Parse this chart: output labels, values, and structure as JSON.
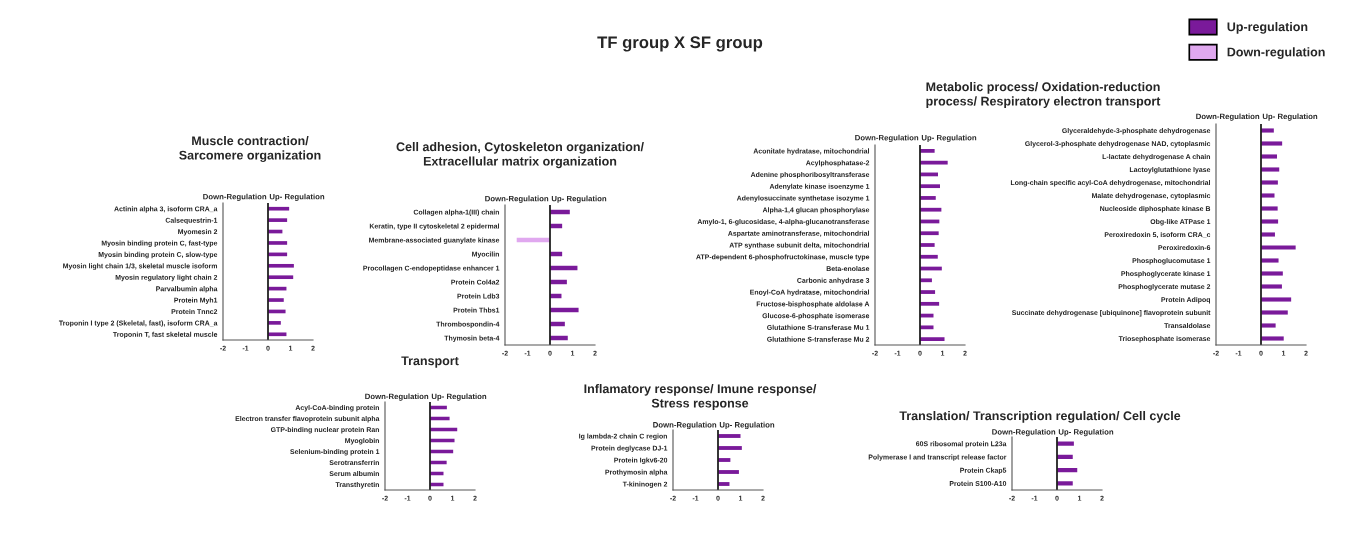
{
  "chart_data": [
    {
      "type": "other",
      "title": "TF group X SF group"
    },
    {
      "type": "bar",
      "orientation": "horizontal",
      "title": "Muscle contraction/\nSarcomere organization",
      "categories": [
        "Actinin alpha 3, isoform CRA_a",
        "Calsequestrin-1",
        "Myomesin 2",
        "Myosin binding protein C, fast-type",
        "Myosin binding protein C, slow-type",
        "Myosin light chain 1/3, skeletal muscle isoform",
        "Myosin regulatory light chain 2",
        "Parvalbumin alpha",
        "Protein Myh1",
        "Protein Tnnc2",
        "Troponin I type 2 (Skeletal, fast), isoform CRA_a",
        "Troponin T, fast skeletal muscle"
      ],
      "series": [
        {
          "color": "#7a1a9a",
          "values": [
            0.94,
            0.85,
            0.64,
            0.85,
            0.85,
            1.15,
            1.12,
            0.82,
            0.7,
            0.78,
            0.57,
            0.82
          ]
        }
      ],
      "xlim": [
        -2,
        2
      ],
      "xticks": [
        -2,
        -1,
        0,
        1,
        2
      ],
      "ref_lines": [
        {
          "axis": "x",
          "value": 0
        }
      ],
      "annotations": [
        "Down-Regulation",
        "Up- Regulation"
      ]
    },
    {
      "type": "bar",
      "orientation": "horizontal",
      "title": "Cell adhesion, Cytoskeleton organization/\nExtracellular matrix organization",
      "categories": [
        "Collagen alpha-1(III) chain",
        "Keratin, type II cytoskeletal 2 epidermal",
        "Membrane-associated guanylate kinase",
        "Myocilin",
        "Procollagen C-endopeptidase enhancer 1",
        "Protein Col4a2",
        "Protein Ldb3",
        "Protein Thbs1",
        "Thrombospondin-4",
        "Thymosin beta-4"
      ],
      "series": [
        {
          "color": "#7a1a9a",
          "values": [
            0.88,
            0.54,
            null,
            0.54,
            1.22,
            0.75,
            0.51,
            1.27,
            0.66,
            0.79
          ]
        },
        {
          "color": "#e0a8ef",
          "values": [
            null,
            null,
            -1.48,
            null,
            null,
            null,
            null,
            null,
            null,
            null
          ]
        }
      ],
      "xlim": [
        -2,
        2
      ],
      "xticks": [
        -2,
        -1,
        0,
        1,
        2
      ],
      "ref_lines": [
        {
          "axis": "x",
          "value": 0
        }
      ],
      "annotations": [
        "Down-Regulation",
        "Up- Regulation"
      ]
    },
    {
      "type": "bar",
      "orientation": "horizontal",
      "title": "Metabolic process/ Oxidation-reduction\nprocess/ Respiratory electron transport",
      "categories": [
        "Aconitate hydratase, mitochondrial",
        "Acylphosphatase-2",
        "Adenine phosphoribosyltransferase",
        "Adenylate kinase isoenzyme 1",
        "Adenylosuccinate synthetase isozyme 1",
        "Alpha-1,4 glucan phosphorylase",
        "Amylo-1, 6-glucosidase, 4-alpha-glucanotransferase",
        "Aspartate aminotransferase, mitochondrial",
        "ATP synthase subunit delta, mitochondrial",
        "ATP-dependent 6-phosphofructokinase, muscle type",
        "Beta-enolase",
        "Carbonic anhydrase 3",
        "Enoyl-CoA hydratase, mitochondrial",
        "Fructose-bisphosphate aldolase A",
        "Glucose-6-phosphate isomerase",
        "Glutathione S-transferase Mu 1",
        "Glutathione S-transferase Mu 2"
      ],
      "series": [
        {
          "color": "#7a1a9a",
          "values": [
            0.65,
            1.23,
            0.8,
            0.89,
            0.7,
            0.95,
            0.86,
            0.83,
            0.65,
            0.79,
            0.97,
            0.53,
            0.67,
            0.85,
            0.6,
            0.6,
            1.09
          ]
        }
      ],
      "xlim": [
        -2,
        2
      ],
      "xticks": [
        -2,
        -1,
        0,
        1,
        2
      ],
      "ref_lines": [
        {
          "axis": "x",
          "value": 0
        }
      ],
      "annotations": [
        "Down-Regulation",
        "Up- Regulation"
      ]
    },
    {
      "type": "bar",
      "orientation": "horizontal",
      "legend": "top right",
      "categories": [
        "Glyceraldehyde-3-phosphate dehydrogenase",
        "Glycerol-3-phosphate dehydrogenase NAD, cytoplasmic",
        "L-lactate dehydrogenase A chain",
        "Lactoylglutathione lyase",
        "Long-chain specific acyl-CoA dehydrogenase, mitochondrial",
        "Malate dehydrogenase, cytoplasmic",
        "Nucleoside diphosphate kinase B",
        "Obg-like ATPase 1",
        "Peroxiredoxin 5, isoform CRA_c",
        "Peroxiredoxin-6",
        "Phosphoglucomutase 1",
        "Phosphoglycerate kinase 1",
        "Phosphoglycerate mutase 2",
        "Protein Adipoq",
        "Succinate dehydrogenase [ubiquinone] flavoprotein subunit",
        "Transaldolase",
        "Triosephosphate isomerase"
      ],
      "series": [
        {
          "name": "Up-regulation",
          "color": "#7a1a9a",
          "values": [
            0.57,
            0.94,
            0.71,
            0.81,
            0.75,
            0.6,
            0.74,
            0.76,
            0.62,
            1.54,
            0.78,
            0.97,
            0.93,
            1.34,
            1.19,
            0.65,
            1.01
          ]
        },
        {
          "name": "Down-regulation",
          "color": "#e0a8ef",
          "values": [
            null,
            null,
            null,
            null,
            null,
            null,
            null,
            null,
            null,
            null,
            null,
            null,
            null,
            null,
            null,
            null,
            null
          ]
        }
      ],
      "xlim": [
        -2,
        2
      ],
      "xticks": [
        -2,
        -1,
        0,
        1,
        2
      ],
      "ref_lines": [
        {
          "axis": "x",
          "value": 0
        }
      ],
      "annotations": [
        "Down-Regulation",
        "Up- Regulation"
      ]
    },
    {
      "type": "bar",
      "orientation": "horizontal",
      "title": "Transport",
      "categories": [
        "Acyl-CoA-binding protein",
        "Electron transfer flavoprotein subunit alpha",
        "GTP-binding nuclear protein Ran",
        "Myoglobin",
        "Selenium-binding protein 1",
        "Serotransferrin",
        "Serum albumin",
        "Transthyretin"
      ],
      "series": [
        {
          "color": "#7a1a9a",
          "values": [
            0.75,
            0.87,
            1.21,
            1.09,
            1.03,
            0.74,
            0.6,
            0.6
          ]
        }
      ],
      "xlim": [
        -2,
        2
      ],
      "xticks": [
        -2,
        -1,
        0,
        1,
        2
      ],
      "ref_lines": [
        {
          "axis": "x",
          "value": 0
        }
      ],
      "annotations": [
        "Down-Regulation",
        "Up- Regulation"
      ]
    },
    {
      "type": "bar",
      "orientation": "horizontal",
      "title": "Inflamatory response/ Imune response/\nStress response",
      "categories": [
        "Ig lambda-2 chain C region",
        "Protein deglycase DJ-1",
        "Protein Igkv6-20",
        "Prothymosin alpha",
        "T-kininogen 2"
      ],
      "series": [
        {
          "color": "#7a1a9a",
          "values": [
            1.0,
            1.06,
            0.55,
            0.93,
            0.51
          ]
        }
      ],
      "xlim": [
        -2,
        2
      ],
      "xticks": [
        -2,
        -1,
        0,
        1,
        2
      ],
      "ref_lines": [
        {
          "axis": "x",
          "value": 0
        }
      ],
      "annotations": [
        "Down-Regulation",
        "Up- Regulation"
      ]
    },
    {
      "type": "bar",
      "orientation": "horizontal",
      "title": "Translation/ Transcription regulation/ Cell cycle",
      "categories": [
        "60S ribosomal protein L23a",
        "Polymerase I and transcript release factor",
        "Protein Ckap5",
        "Protein S100-A10"
      ],
      "series": [
        {
          "color": "#7a1a9a",
          "values": [
            0.75,
            0.7,
            0.9,
            0.7
          ]
        }
      ],
      "xlim": [
        -2,
        2
      ],
      "xticks": [
        -2,
        -1,
        0,
        1,
        2
      ],
      "ref_lines": [
        {
          "axis": "x",
          "value": 0
        }
      ],
      "annotations": [
        "Down-Regulation",
        "Up- Regulation"
      ]
    }
  ]
}
